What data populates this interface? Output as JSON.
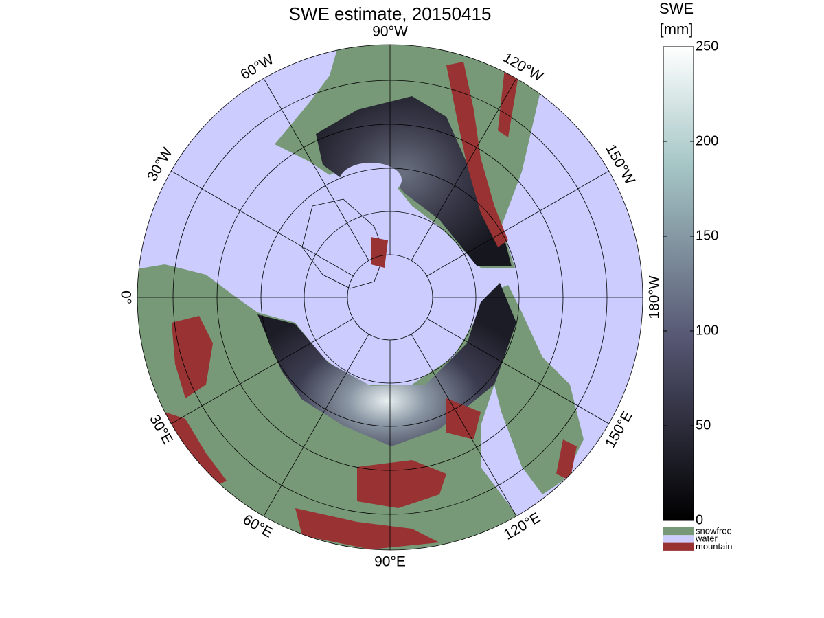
{
  "title": "SWE estimate, 20150415",
  "longitude_labels": [
    "0°",
    "30°E",
    "60°E",
    "90°E",
    "120°E",
    "150°E",
    "180°W",
    "150°W",
    "120°W",
    "90°W",
    "60°W",
    "30°W"
  ],
  "colorbar": {
    "label": [
      "SWE",
      "[mm]"
    ],
    "lim": [
      0,
      250
    ],
    "ticks": [
      0,
      50,
      100,
      150,
      200,
      250
    ],
    "classes": [
      {
        "name": "snowfree",
        "color": "#779977"
      },
      {
        "name": "water",
        "color": "#ccccff"
      },
      {
        "name": "mountain",
        "color": "#993333"
      }
    ]
  }
}
